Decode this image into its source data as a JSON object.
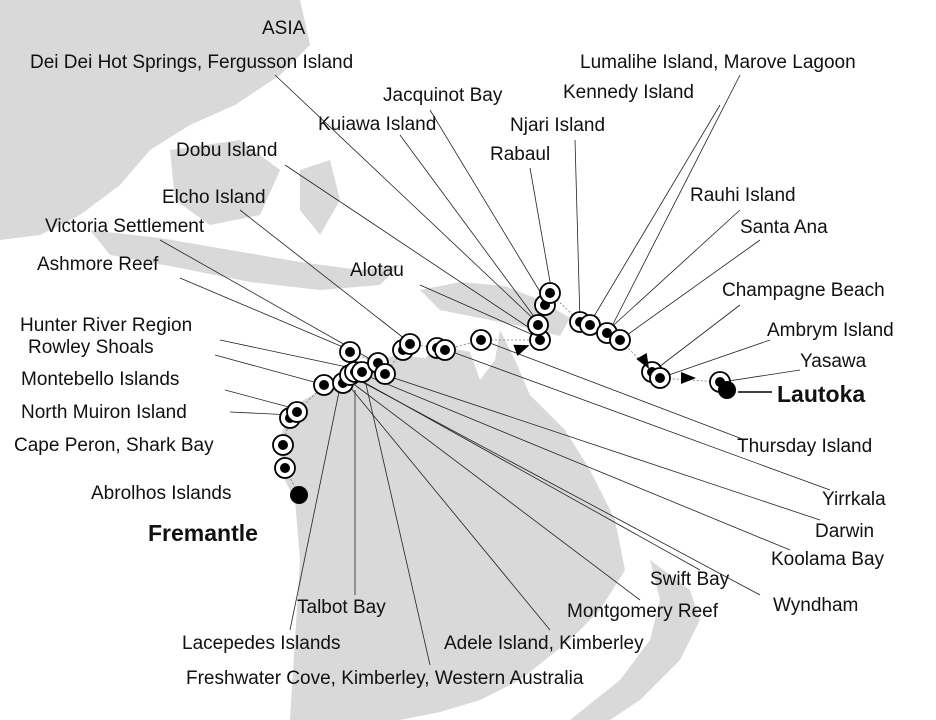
{
  "map": {
    "region_label": "ASIA",
    "colors": {
      "land": "#d9d9d9",
      "sea": "#ffffff",
      "marker": "#000000"
    },
    "ports": [
      "Fremantle",
      "Lautoka"
    ],
    "stops": [
      "Dei Dei Hot Springs, Fergusson Island",
      "Jacquinot Bay",
      "Lumalihe Island, Marove Lagoon",
      "Kennedy Island",
      "Kuiawa Island",
      "Njari Island",
      "Rabaul",
      "Dobu Island",
      "Elcho Island",
      "Rauhi Island",
      "Santa Ana",
      "Victoria Settlement",
      "Ashmore Reef",
      "Alotau",
      "Champagne Beach",
      "Hunter River Region",
      "Ambrym Island",
      "Rowley Shoals",
      "Yasawa",
      "Montebello Islands",
      "North Muiron Island",
      "Thursday Island",
      "Cape Peron, Shark Bay",
      "Abrolhos Islands",
      "Yirrkala",
      "Darwin",
      "Koolama Bay",
      "Swift Bay",
      "Wyndham",
      "Montgomery Reef",
      "Talbot Bay",
      "Adele Island, Kimberley",
      "Lacepedes Islands",
      "Freshwater Cove, Kimberley, Western Australia"
    ]
  }
}
